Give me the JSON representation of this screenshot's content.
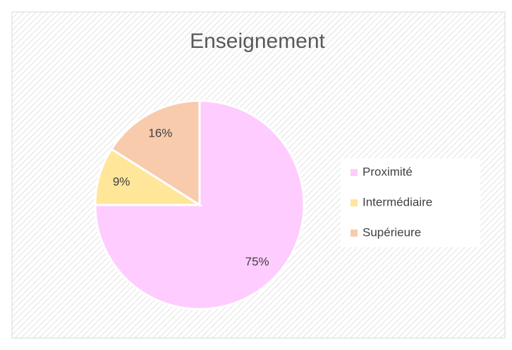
{
  "chart_data": {
    "type": "pie",
    "title": "Enseignement",
    "categories": [
      "Proximité",
      "Intermédiaire",
      "Supérieure"
    ],
    "values": [
      75,
      9,
      16
    ],
    "value_labels": [
      "75%",
      "9%",
      "16%"
    ],
    "colors": [
      "#ffccff",
      "#ffe699",
      "#f8cbad"
    ],
    "legend": "right"
  }
}
